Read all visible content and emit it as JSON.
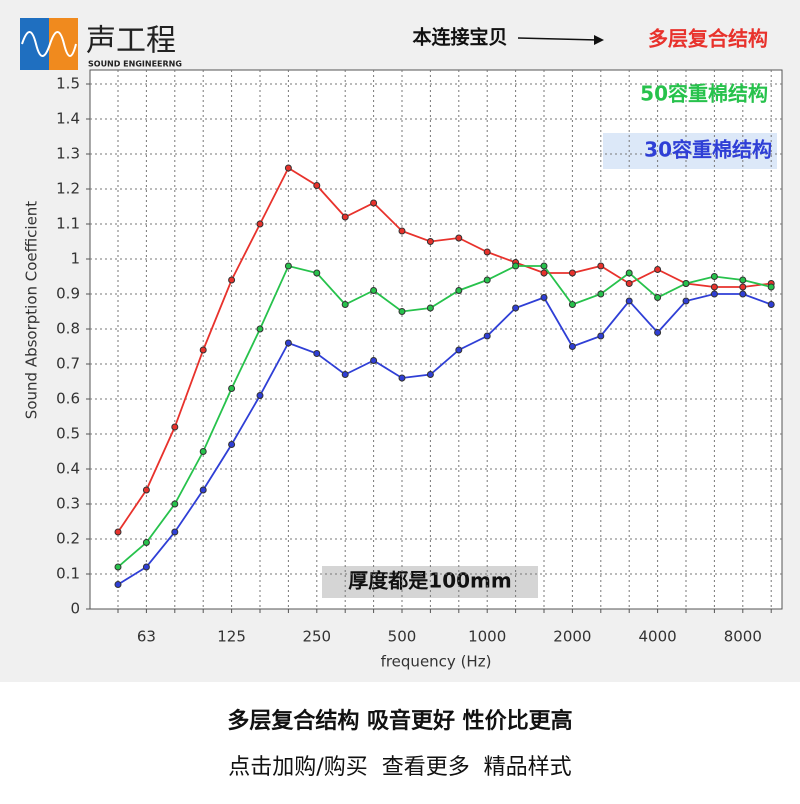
{
  "logo": {
    "name": "声工程",
    "subtitle": "SOUND ENGINEERNG"
  },
  "chart_data": {
    "type": "line",
    "xlabel": "frequency (Hz)",
    "ylabel": "Sound Absorption Coefficient",
    "annotations": [
      "本连接宝贝",
      "厚度都是100mm"
    ],
    "categories": [
      null,
      "63",
      null,
      null,
      "125",
      null,
      null,
      "250",
      null,
      null,
      "500",
      null,
      null,
      "1000",
      null,
      null,
      "2000",
      null,
      null,
      "4000",
      null,
      null,
      "8000",
      null
    ],
    "series": [
      {
        "name": "多层复合结构",
        "color": "#e8322c",
        "values": [
          0.22,
          0.34,
          0.52,
          0.74,
          0.94,
          1.1,
          1.26,
          1.21,
          1.12,
          1.16,
          1.08,
          1.05,
          1.06,
          1.02,
          0.99,
          0.96,
          0.96,
          0.98,
          0.93,
          0.97,
          0.93,
          0.92,
          0.92,
          0.93
        ]
      },
      {
        "name": "50容重棉结构",
        "color": "#27c24c",
        "values": [
          0.12,
          0.19,
          0.3,
          0.45,
          0.63,
          0.8,
          0.98,
          0.96,
          0.87,
          0.91,
          0.85,
          0.86,
          0.91,
          0.94,
          0.98,
          0.98,
          0.87,
          0.9,
          0.96,
          0.89,
          0.93,
          0.95,
          0.94,
          0.92
        ]
      },
      {
        "name": "30容重棉结构",
        "color": "#2f3fd6",
        "values": [
          0.07,
          0.12,
          0.22,
          0.34,
          0.47,
          0.61,
          0.76,
          0.73,
          0.67,
          0.71,
          0.66,
          0.67,
          0.74,
          0.78,
          0.86,
          0.89,
          0.75,
          0.78,
          0.88,
          0.79,
          0.88,
          0.9,
          0.9,
          0.87
        ]
      }
    ],
    "ylim": [
      0,
      1.54
    ],
    "yticks": [
      0,
      0.1,
      0.2,
      0.3,
      0.4,
      0.5,
      0.6,
      0.7,
      0.8,
      0.9,
      1,
      1.1,
      1.2,
      1.3,
      1.4,
      1.5
    ],
    "grid": true
  },
  "footer": {
    "headline": "多层复合结构 吸音更好 性价比更高",
    "links": "点击加购/购买  查看更多  精品样式"
  }
}
